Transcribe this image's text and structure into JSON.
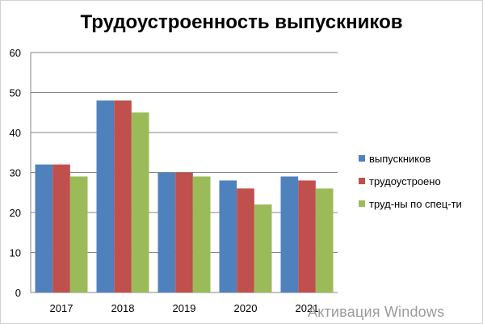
{
  "chart_data": {
    "type": "bar",
    "title": "Трудоустроенность выпускников",
    "categories": [
      "2017",
      "2018",
      "2019",
      "2020",
      "2021"
    ],
    "series": [
      {
        "name": "выпускников",
        "values": [
          32,
          48,
          30,
          28,
          29
        ],
        "color": "#4f81bd"
      },
      {
        "name": "трудоустроено",
        "values": [
          32,
          48,
          30,
          26,
          28
        ],
        "color": "#c0504d"
      },
      {
        "name": "труд-ны по спец-ти",
        "values": [
          29,
          45,
          29,
          22,
          26
        ],
        "color": "#9bbb59"
      }
    ],
    "yticks": [
      "0",
      "10",
      "20",
      "30",
      "40",
      "50",
      "60"
    ],
    "ylim": [
      0,
      60
    ],
    "grid": true,
    "legend_position": "right"
  },
  "watermark": "Активация Windows"
}
